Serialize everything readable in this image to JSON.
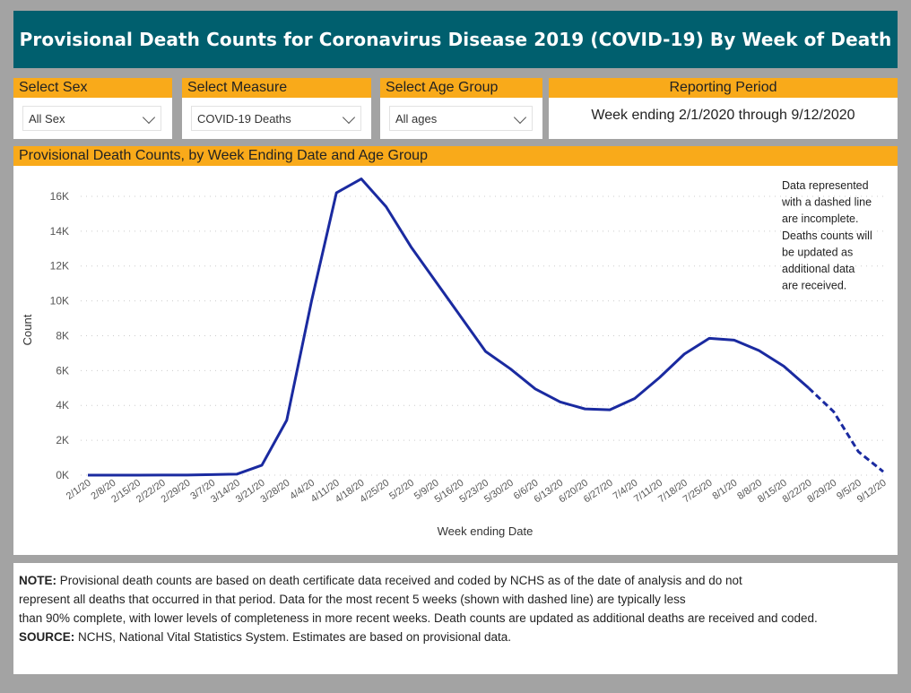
{
  "title": "Provisional Death Counts for Coronavirus Disease 2019 (COVID-19) By Week of Death",
  "filters": [
    {
      "label": "Select Sex",
      "value": "All Sex"
    },
    {
      "label": "Select Measure",
      "value": "COVID-19 Deaths"
    },
    {
      "label": "Select Age Group",
      "value": "All ages"
    }
  ],
  "reporting": {
    "label": "Reporting Period",
    "value": "Week ending 2/1/2020 through 9/12/2020"
  },
  "chart_panel_title": "Provisional Death Counts, by Week Ending Date and Age Group",
  "chart_data": {
    "type": "line",
    "xlabel": "Week ending Date",
    "ylabel": "Count",
    "ylim": [
      0,
      17500
    ],
    "yticks": [
      0,
      2000,
      4000,
      6000,
      8000,
      10000,
      12000,
      14000,
      16000
    ],
    "ytick_labels": [
      "0K",
      "2K",
      "4K",
      "6K",
      "8K",
      "10K",
      "12K",
      "14K",
      "16K"
    ],
    "grid": true,
    "color": "#1a2aa0",
    "x": [
      "2/1/20",
      "2/8/20",
      "2/15/20",
      "2/22/20",
      "2/29/20",
      "3/7/20",
      "3/14/20",
      "3/21/20",
      "3/28/20",
      "4/4/20",
      "4/11/20",
      "4/18/20",
      "4/25/20",
      "5/2/20",
      "5/9/20",
      "5/16/20",
      "5/23/20",
      "5/30/20",
      "6/6/20",
      "6/13/20",
      "6/20/20",
      "6/27/20",
      "7/4/20",
      "7/11/20",
      "7/18/20",
      "7/25/20",
      "8/1/20",
      "8/8/20",
      "8/15/20",
      "8/22/20",
      "8/29/20",
      "9/5/20",
      "9/12/20"
    ],
    "values": [
      0,
      0,
      0,
      5,
      5,
      30,
      60,
      570,
      3150,
      10000,
      16200,
      17000,
      15400,
      13100,
      11100,
      9100,
      7100,
      6100,
      4950,
      4200,
      3800,
      3750,
      4400,
      5600,
      6950,
      7850,
      7750,
      7150,
      6250,
      5000,
      3650,
      1350,
      200
    ],
    "dashed_from_index": 29,
    "annotation": [
      "Data represented",
      "with a dashed line",
      "are incomplete.",
      "Deaths counts will",
      "be updated as",
      "additional data",
      "are received."
    ]
  },
  "note": {
    "note_label": "NOTE:",
    "lines": [
      "Provisional death counts are based on death certificate data received and coded by NCHS as of the date of analysis and do not",
      "represent all deaths that occurred in that period. Data for the most recent 5 weeks (shown with dashed line) are typically less",
      "than 90% complete, with lower levels of completeness in more recent weeks.  Death counts are updated as additional deaths are received and coded."
    ],
    "source_label": "SOURCE:",
    "source_text": "NCHS, National Vital Statistics System. Estimates are based on provisional data."
  }
}
